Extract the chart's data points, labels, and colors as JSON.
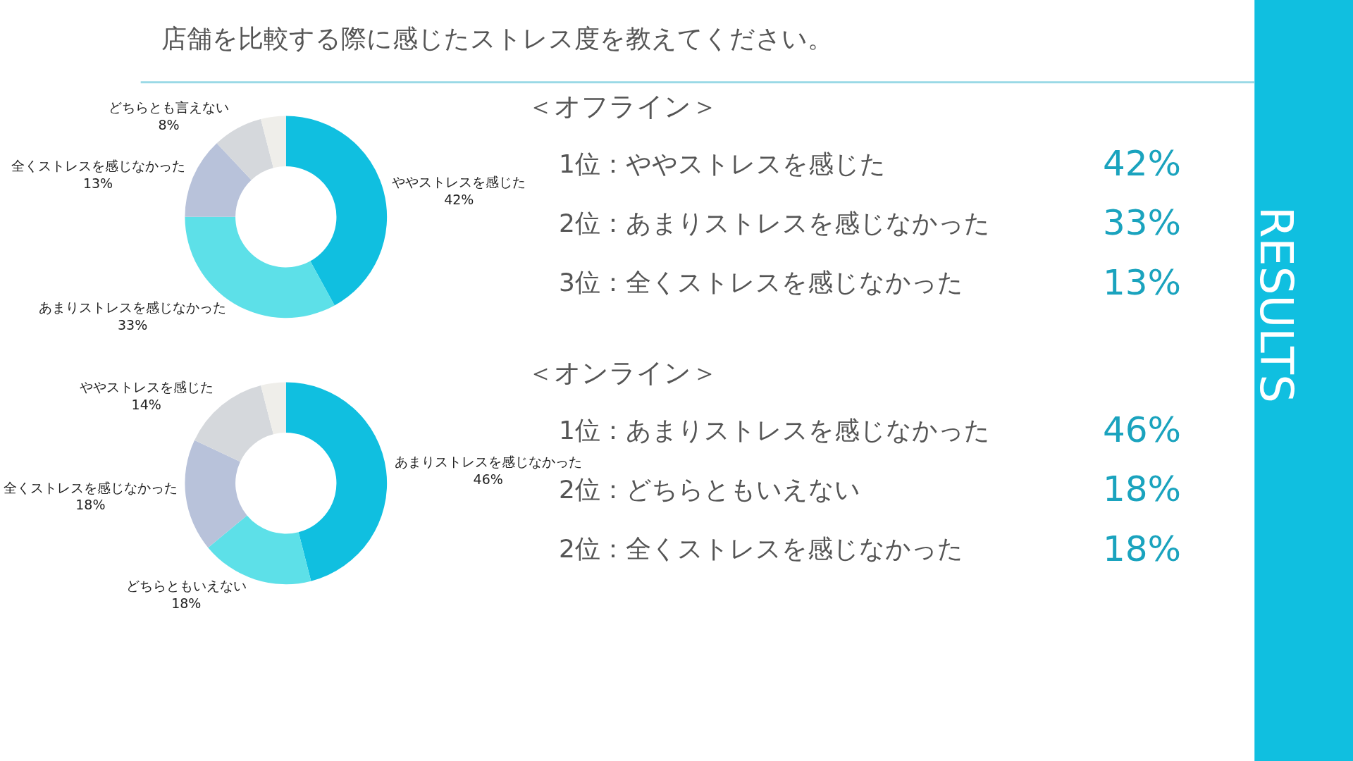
{
  "chart_data": [
    {
      "type": "donut",
      "title": "店舗を比較する際に感じたストレス度を教えてください。",
      "categories": [
        "ややストレスを感じた",
        "あまりストレスを感じなかった",
        "全くストレスを感じなかった",
        "どちらとも言えない",
        null
      ],
      "values": [
        42,
        33,
        13,
        8,
        4
      ],
      "value_labels": [
        "42%",
        "33%",
        "13%",
        "8%",
        null
      ],
      "colors": [
        "#10bfe0",
        "#5de0e8",
        "#b8c2da",
        "#d5d8dc",
        "#efeeea"
      ]
    },
    {
      "type": "other",
      "title": "＜オフライン＞",
      "annotations": [
        "1位：ややストレスを感じた",
        "42%",
        "2位：あまりストレスを感じなかった",
        "33%",
        "3位：全くストレスを感じなかった",
        "13%"
      ]
    },
    {
      "type": "donut",
      "categories": [
        "あまりストレスを感じなかった",
        "どちらともいえない",
        "全くストレスを感じなかった",
        "ややストレスを感じた",
        null
      ],
      "values": [
        46,
        18,
        18,
        14,
        4
      ],
      "value_labels": [
        "46%",
        "18%",
        "18%",
        "14%",
        null
      ],
      "colors": [
        "#10bfe0",
        "#5de0e8",
        "#b8c2da",
        "#d5d8dc",
        "#efeeea"
      ]
    },
    {
      "type": "other",
      "title": "＜オンライン＞",
      "annotations": [
        "1位：あまりストレスを感じなかった",
        "46%",
        "2位：どちらともいえない",
        "18%",
        "2位：全くストレスを感じなかった",
        "18%"
      ]
    },
    {
      "type": "other",
      "annotations": [
        "RESULTS"
      ]
    }
  ]
}
